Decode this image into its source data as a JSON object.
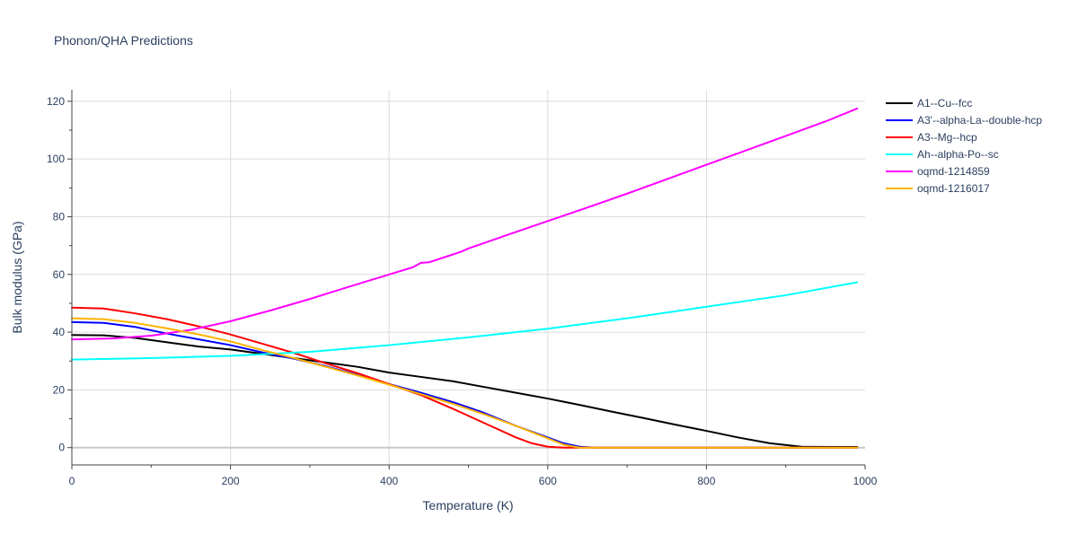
{
  "chart_data": {
    "type": "line",
    "title": "Phonon/QHA Predictions",
    "xlabel": "Temperature (K)",
    "ylabel": "Bulk modulus (GPa)",
    "xlim": [
      0,
      1000
    ],
    "ylim": [
      -6,
      124
    ],
    "xticks": [
      0,
      200,
      400,
      600,
      800,
      1000
    ],
    "yticks": [
      0,
      20,
      40,
      60,
      80,
      100,
      120
    ],
    "xtick_labels": [
      "0",
      "200",
      "400",
      "600",
      "800",
      "1000"
    ],
    "ytick_labels": [
      "0",
      "20",
      "40",
      "60",
      "80",
      "100",
      "120"
    ],
    "grid": true,
    "legend_position": "top-right",
    "series": [
      {
        "name": "A1--Cu--fcc",
        "color": "#000000",
        "x": [
          0,
          40,
          80,
          120,
          160,
          200,
          240,
          280,
          320,
          360,
          400,
          440,
          480,
          520,
          560,
          600,
          640,
          680,
          720,
          760,
          800,
          840,
          880,
          920,
          960,
          990
        ],
        "y": [
          39,
          38.9,
          38,
          36.5,
          35,
          34,
          32.5,
          31,
          29.5,
          28,
          26,
          24.5,
          23,
          21,
          19,
          17,
          14.8,
          12.5,
          10.3,
          8,
          5.8,
          3.5,
          1.5,
          0.3,
          0.2,
          0.2
        ]
      },
      {
        "name": "A3'--alpha-La--double-hcp",
        "color": "#0000ff",
        "x": [
          0,
          40,
          80,
          120,
          160,
          200,
          240,
          280,
          320,
          360,
          400,
          440,
          480,
          520,
          560,
          600,
          620,
          640,
          660,
          700,
          800,
          900,
          990
        ],
        "y": [
          43.5,
          43.2,
          41.8,
          39.5,
          37.5,
          35.5,
          33,
          30.8,
          28.2,
          25.2,
          22,
          19,
          15.8,
          12,
          7.5,
          3.5,
          1.5,
          0.3,
          0,
          0,
          0,
          0,
          0
        ]
      },
      {
        "name": "A3--Mg--hcp",
        "color": "#ff0000",
        "x": [
          0,
          40,
          80,
          120,
          160,
          200,
          240,
          280,
          320,
          360,
          400,
          440,
          480,
          520,
          560,
          580,
          600,
          620,
          660,
          700,
          800,
          900,
          990
        ],
        "y": [
          48.5,
          48.2,
          46.5,
          44.5,
          42,
          39.2,
          36,
          32.8,
          29.2,
          25.8,
          22,
          18.2,
          13.5,
          8.5,
          3.5,
          1.5,
          0.3,
          0,
          0,
          0,
          0,
          0,
          0
        ]
      },
      {
        "name": "Ah--alpha-Po--sc",
        "color": "#00ffff",
        "x": [
          0,
          100,
          200,
          300,
          400,
          500,
          600,
          700,
          800,
          900,
          990
        ],
        "y": [
          30.5,
          31,
          31.8,
          33.2,
          35.5,
          38.2,
          41.2,
          44.8,
          48.8,
          52.8,
          57.3
        ]
      },
      {
        "name": "oqmd-1214859",
        "color": "#ff00ff",
        "x": [
          0,
          50,
          100,
          150,
          200,
          250,
          300,
          350,
          400,
          430,
          440,
          450,
          470,
          490,
          500,
          550,
          600,
          650,
          700,
          750,
          800,
          850,
          900,
          950,
          990
        ],
        "y": [
          37.5,
          37.8,
          38.8,
          40.8,
          43.8,
          47.5,
          51.5,
          55.8,
          60,
          62.5,
          64,
          64.2,
          66,
          67.8,
          69,
          73.8,
          78.5,
          83.2,
          88,
          93,
          98,
          103,
          108,
          113,
          117.5
        ]
      },
      {
        "name": "oqmd-1216017",
        "color": "#ffb300",
        "x": [
          0,
          40,
          80,
          120,
          160,
          200,
          240,
          280,
          320,
          360,
          400,
          440,
          480,
          520,
          560,
          600,
          620,
          640,
          700,
          800,
          900,
          990
        ],
        "y": [
          44.8,
          44.5,
          43.2,
          41.3,
          39.2,
          36.8,
          33.8,
          31,
          28,
          25,
          21.8,
          18.5,
          15.2,
          11.5,
          7.5,
          3.2,
          1,
          0,
          0,
          0,
          0,
          0
        ]
      }
    ]
  }
}
